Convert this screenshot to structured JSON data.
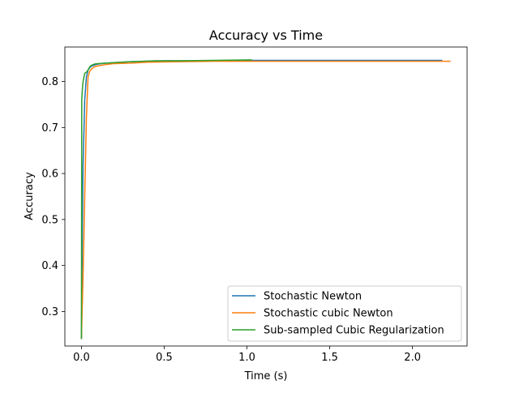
{
  "chart_data": {
    "type": "line",
    "title": "Accuracy vs Time",
    "xlabel": "Time (s)",
    "ylabel": "Accuracy",
    "xlim": [
      -0.1,
      2.33
    ],
    "ylim": [
      0.225,
      0.875
    ],
    "xticks": [
      0.0,
      0.5,
      1.0,
      1.5,
      2.0
    ],
    "xtick_labels": [
      "0.0",
      "0.5",
      "1.0",
      "1.5",
      "2.0"
    ],
    "yticks": [
      0.3,
      0.4,
      0.5,
      0.6,
      0.7,
      0.8
    ],
    "ytick_labels": [
      "0.3",
      "0.4",
      "0.5",
      "0.6",
      "0.7",
      "0.8"
    ],
    "grid": false,
    "legend_position": "lower-right",
    "series": [
      {
        "name": "Stochastic Newton",
        "color": "#1f77b4",
        "x": [
          0.0,
          0.005,
          0.01,
          0.02,
          0.03,
          0.04,
          0.05,
          0.06,
          0.08,
          0.1,
          0.15,
          0.2,
          0.3,
          0.4,
          0.5,
          0.7,
          1.0,
          1.3,
          1.6,
          1.9,
          2.18
        ],
        "y": [
          0.24,
          0.45,
          0.62,
          0.76,
          0.81,
          0.825,
          0.83,
          0.833,
          0.836,
          0.838,
          0.84,
          0.841,
          0.843,
          0.844,
          0.845,
          0.845,
          0.846,
          0.846,
          0.846,
          0.846,
          0.846
        ]
      },
      {
        "name": "Stochastic cubic Newton",
        "color": "#ff7f0e",
        "x": [
          0.0,
          0.01,
          0.02,
          0.03,
          0.04,
          0.05,
          0.06,
          0.08,
          0.1,
          0.15,
          0.2,
          0.3,
          0.4,
          0.6,
          0.8,
          1.0,
          1.3,
          1.6,
          1.9,
          2.1,
          2.23
        ],
        "y": [
          0.24,
          0.38,
          0.55,
          0.72,
          0.81,
          0.822,
          0.827,
          0.832,
          0.834,
          0.837,
          0.839,
          0.84,
          0.842,
          0.843,
          0.844,
          0.844,
          0.844,
          0.844,
          0.844,
          0.844,
          0.844
        ]
      },
      {
        "name": "Sub-sampled Cubic Regularization",
        "color": "#2ca02c",
        "x": [
          0.0,
          0.002,
          0.005,
          0.01,
          0.02,
          0.03,
          0.04,
          0.05,
          0.06,
          0.08,
          0.1,
          0.15,
          0.2,
          0.3,
          0.45,
          0.6,
          0.8,
          1.03
        ],
        "y": [
          0.24,
          0.76,
          0.78,
          0.8,
          0.818,
          0.82,
          0.825,
          0.832,
          0.835,
          0.838,
          0.839,
          0.84,
          0.841,
          0.843,
          0.845,
          0.845,
          0.846,
          0.847
        ]
      }
    ]
  }
}
